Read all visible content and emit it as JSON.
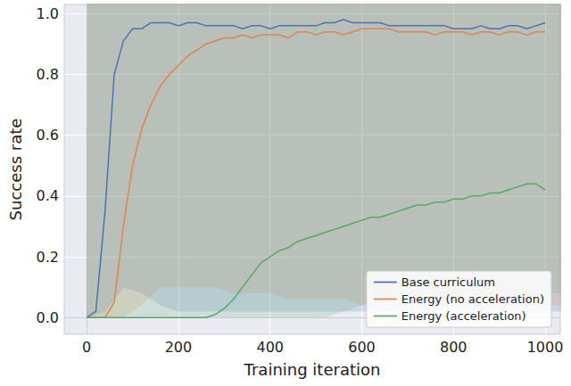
{
  "chart_data": {
    "type": "line",
    "x_label": "Training iteration",
    "y_label": "Success rate",
    "x": [
      0,
      20,
      40,
      60,
      80,
      100,
      120,
      140,
      160,
      180,
      200,
      220,
      240,
      260,
      280,
      300,
      320,
      340,
      360,
      380,
      400,
      420,
      440,
      460,
      480,
      500,
      520,
      540,
      560,
      580,
      600,
      620,
      640,
      660,
      680,
      700,
      720,
      740,
      760,
      780,
      800,
      820,
      840,
      860,
      880,
      900,
      920,
      940,
      960,
      980,
      1000
    ],
    "series": [
      {
        "name": "Base curriculum",
        "color": "#4c72b0",
        "values": [
          0,
          0.02,
          0.35,
          0.8,
          0.91,
          0.95,
          0.95,
          0.97,
          0.97,
          0.97,
          0.96,
          0.97,
          0.97,
          0.96,
          0.96,
          0.96,
          0.96,
          0.95,
          0.96,
          0.96,
          0.95,
          0.96,
          0.96,
          0.96,
          0.96,
          0.96,
          0.97,
          0.97,
          0.98,
          0.97,
          0.97,
          0.97,
          0.97,
          0.96,
          0.96,
          0.96,
          0.96,
          0.96,
          0.96,
          0.96,
          0.95,
          0.95,
          0.95,
          0.96,
          0.95,
          0.95,
          0.96,
          0.96,
          0.95,
          0.96,
          0.97
        ],
        "error": [
          0,
          0.01,
          0.05,
          0.04,
          0.02,
          0.01,
          0.01,
          0.01,
          0.01,
          0.01,
          0.01,
          0.01,
          0.01,
          0.01,
          0.01,
          0.01,
          0.01,
          0.01,
          0.01,
          0.01,
          0.01,
          0.01,
          0.01,
          0.01,
          0.01,
          0.01,
          0.01,
          0.01,
          0.01,
          0.01,
          0.01,
          0.01,
          0.01,
          0.01,
          0.01,
          0.01,
          0.01,
          0.01,
          0.01,
          0.01,
          0.01,
          0.01,
          0.01,
          0.01,
          0.01,
          0.01,
          0.01,
          0.01,
          0.01,
          0.01,
          0.01
        ]
      },
      {
        "name": "Energy (no acceleration)",
        "color": "#dd8452",
        "values": [
          0,
          0,
          0,
          0.05,
          0.3,
          0.5,
          0.62,
          0.7,
          0.76,
          0.8,
          0.83,
          0.86,
          0.88,
          0.9,
          0.91,
          0.92,
          0.92,
          0.93,
          0.92,
          0.93,
          0.93,
          0.93,
          0.92,
          0.94,
          0.94,
          0.93,
          0.94,
          0.94,
          0.93,
          0.94,
          0.95,
          0.95,
          0.95,
          0.95,
          0.94,
          0.94,
          0.94,
          0.94,
          0.93,
          0.94,
          0.94,
          0.94,
          0.93,
          0.94,
          0.94,
          0.93,
          0.94,
          0.94,
          0.93,
          0.94,
          0.94
        ],
        "error": [
          0,
          0,
          0,
          0.02,
          0.05,
          0.05,
          0.05,
          0.05,
          0.04,
          0.04,
          0.04,
          0.03,
          0.03,
          0.03,
          0.03,
          0.02,
          0.02,
          0.02,
          0.02,
          0.02,
          0.02,
          0.02,
          0.02,
          0.02,
          0.02,
          0.02,
          0.02,
          0.02,
          0.02,
          0.02,
          0.02,
          0.02,
          0.02,
          0.02,
          0.02,
          0.02,
          0.02,
          0.02,
          0.02,
          0.02,
          0.02,
          0.02,
          0.02,
          0.02,
          0.02,
          0.02,
          0.02,
          0.02,
          0.02,
          0.02,
          0.02
        ]
      },
      {
        "name": "Energy (acceleration)",
        "color": "#55a868",
        "values": [
          0,
          0,
          0,
          0,
          0,
          0,
          0,
          0,
          0,
          0,
          0,
          0,
          0,
          0,
          0.01,
          0.03,
          0.06,
          0.1,
          0.14,
          0.18,
          0.2,
          0.22,
          0.23,
          0.25,
          0.26,
          0.27,
          0.28,
          0.29,
          0.3,
          0.31,
          0.32,
          0.33,
          0.33,
          0.34,
          0.35,
          0.36,
          0.37,
          0.37,
          0.38,
          0.38,
          0.39,
          0.39,
          0.4,
          0.4,
          0.41,
          0.41,
          0.42,
          0.43,
          0.44,
          0.44,
          0.42
        ],
        "error": [
          0,
          0,
          0,
          0,
          0,
          0,
          0,
          0,
          0,
          0,
          0,
          0,
          0,
          0,
          0.01,
          0.02,
          0.03,
          0.04,
          0.04,
          0.04,
          0.04,
          0.04,
          0.04,
          0.04,
          0.04,
          0.04,
          0.04,
          0.04,
          0.04,
          0.04,
          0.04,
          0.04,
          0.04,
          0.04,
          0.04,
          0.04,
          0.04,
          0.04,
          0.04,
          0.04,
          0.04,
          0.04,
          0.04,
          0.04,
          0.04,
          0.04,
          0.04,
          0.05,
          0.05,
          0.05,
          0.05
        ]
      }
    ],
    "xlim": [
      -49,
      1033
    ],
    "xticks": [
      0,
      200,
      400,
      600,
      800,
      1000
    ],
    "ylim": [
      -0.055,
      1.03
    ],
    "yticks": [
      {
        "value": 0,
        "label": "0.0"
      },
      0.2,
      0.4,
      0.6,
      0.8,
      {
        "value": 1,
        "label": "1.0"
      }
    ],
    "grid": true,
    "legend": "lower right"
  }
}
